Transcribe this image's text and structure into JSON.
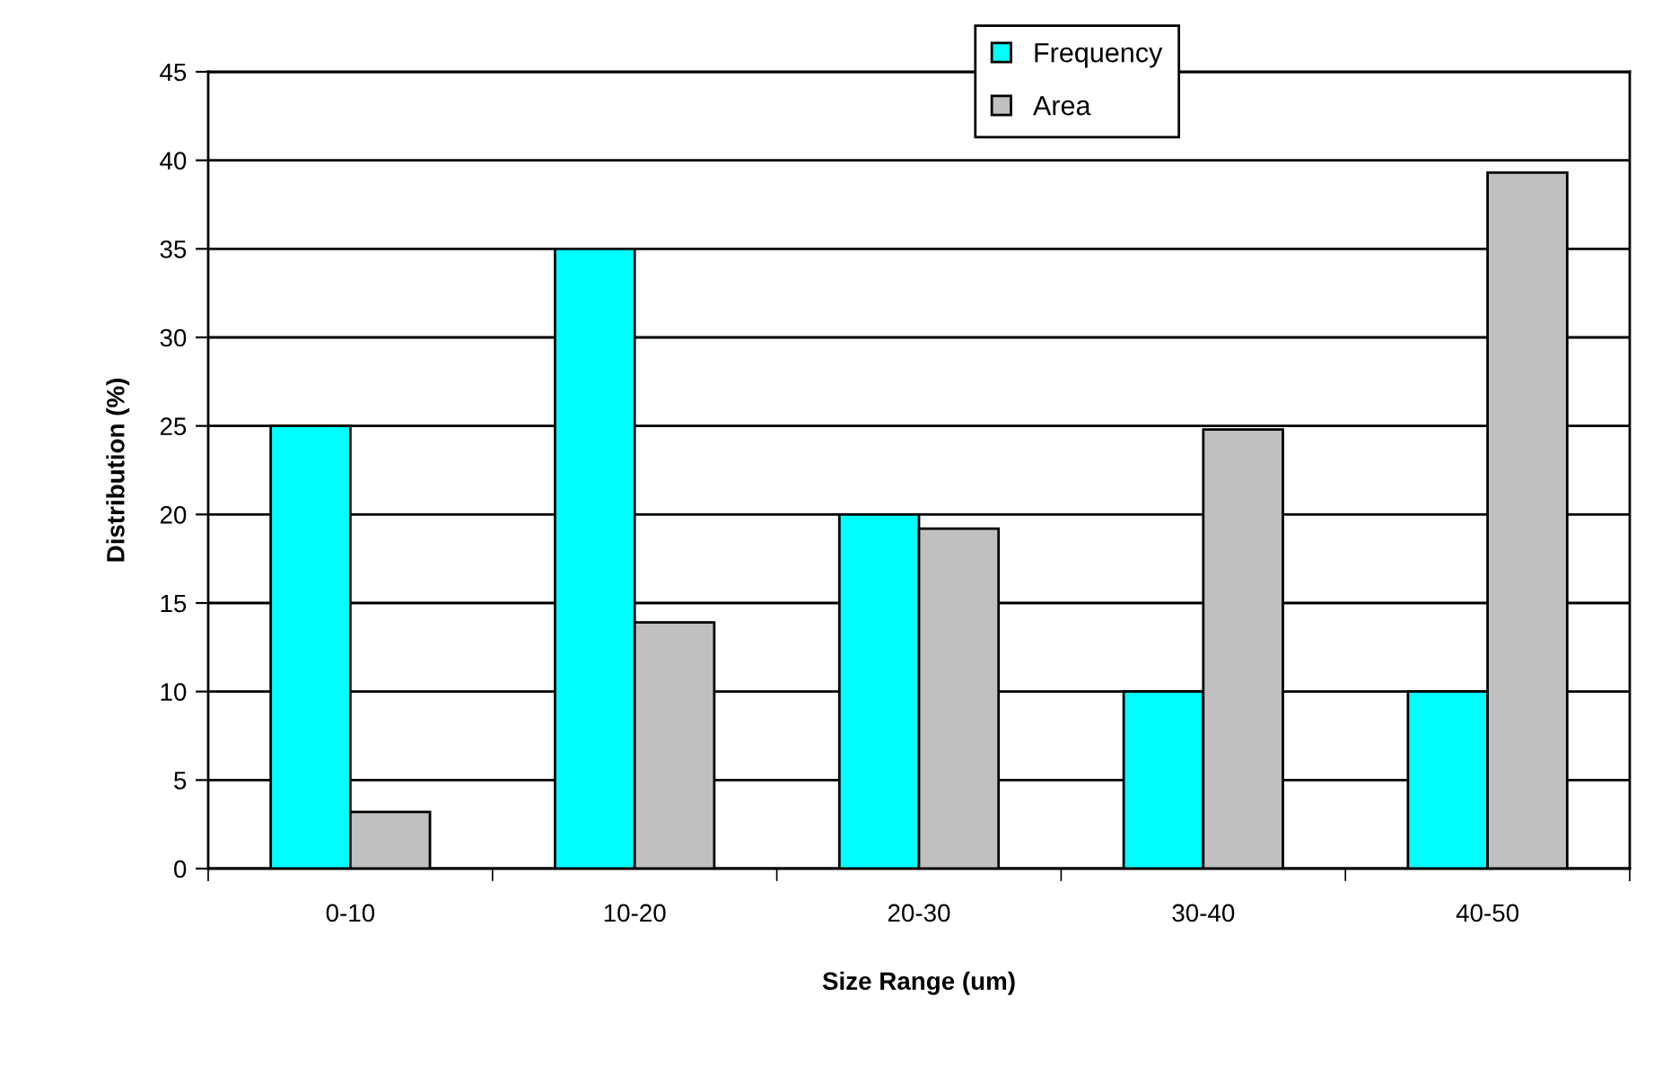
{
  "chart_data": {
    "type": "bar",
    "xlabel": "Size Range (um)",
    "ylabel": "Distribution (%)",
    "categories": [
      "0-10",
      "10-20",
      "20-30",
      "30-40",
      "40-50"
    ],
    "series": [
      {
        "name": "Frequency",
        "color": "#00ffff",
        "values": [
          25,
          35,
          20,
          10,
          10
        ]
      },
      {
        "name": "Area",
        "color": "#c0c0c0",
        "values": [
          3.2,
          13.9,
          19.2,
          24.8,
          39.3
        ]
      }
    ],
    "ylim": [
      0,
      45
    ],
    "yticks": [
      0,
      5,
      10,
      15,
      20,
      25,
      30,
      35,
      40,
      45
    ],
    "grid": "y",
    "legend": "top right"
  }
}
